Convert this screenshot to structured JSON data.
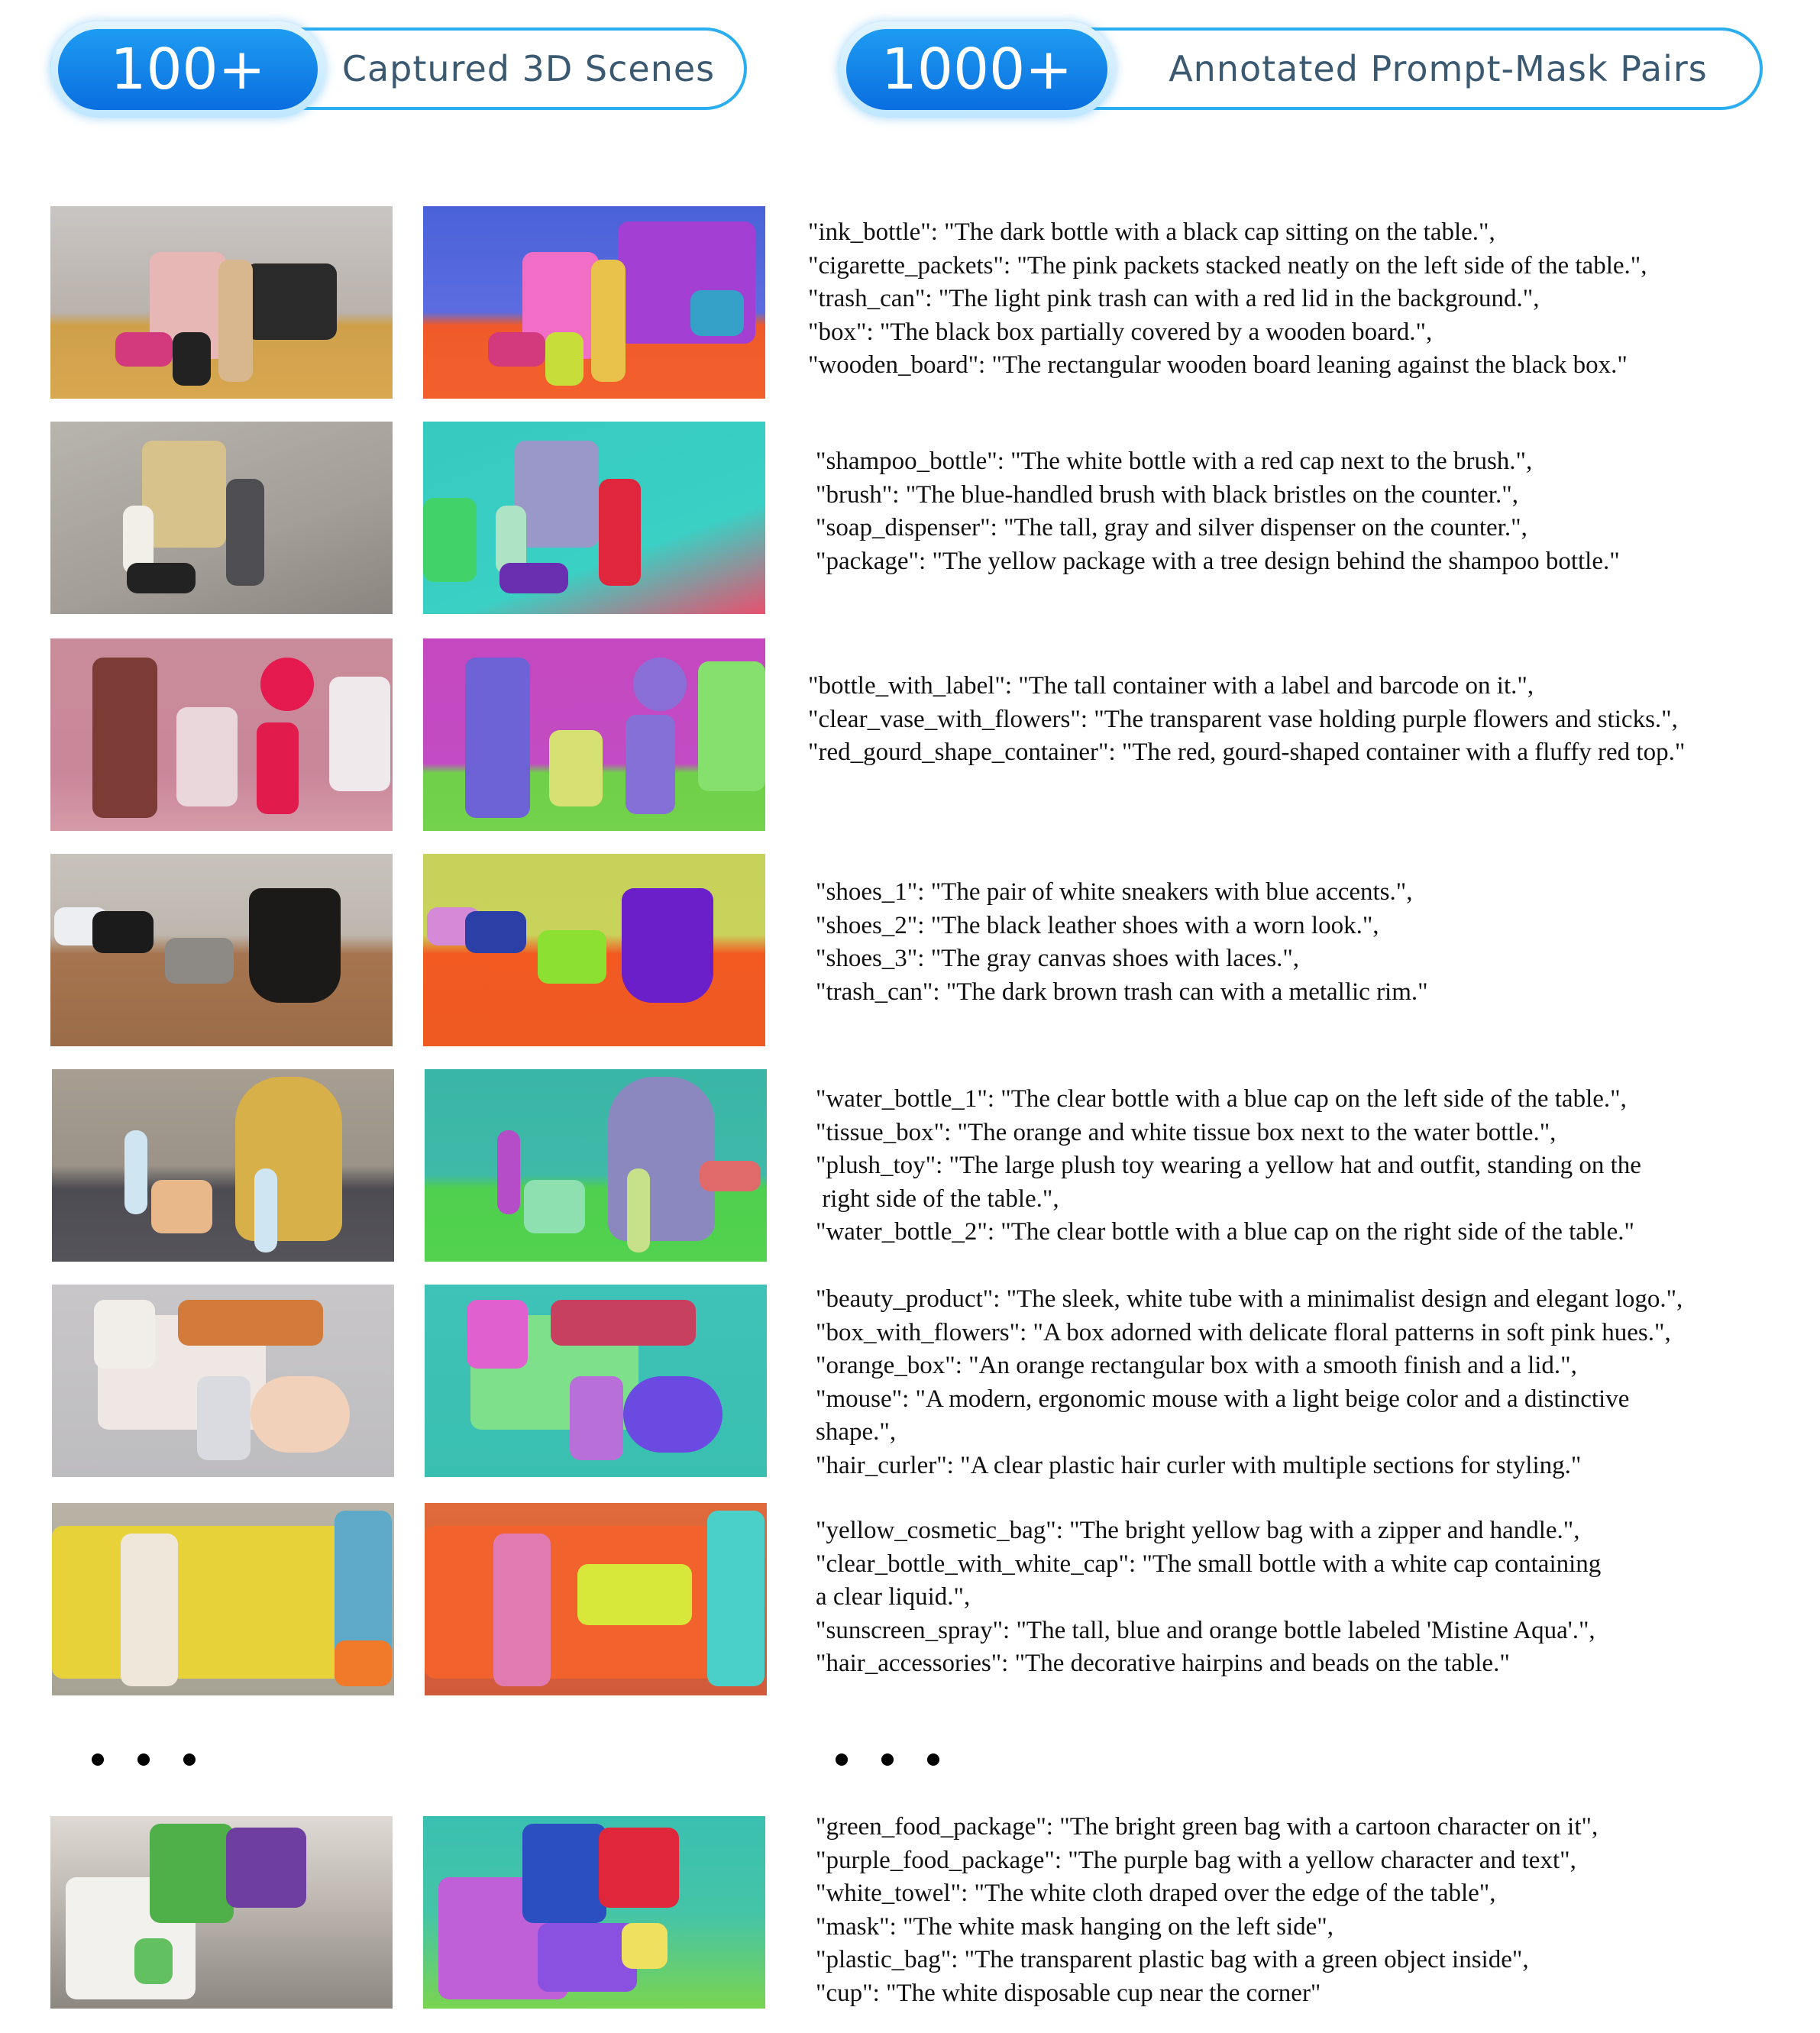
{
  "header": {
    "scenes_badge": {
      "count": "100+",
      "label": "Captured 3D Scenes"
    },
    "pairs_badge": {
      "count": "1000+",
      "label": "Annotated Prompt-Mask Pairs"
    }
  },
  "rows": [
    {
      "text": "\"ink_bottle\": \"The dark bottle with a black cap sitting on the table.\",\n\"cigarette_packets\": \"The pink packets stacked neatly on the left side of the table.\",\n\"trash_can\": \"The light pink trash can with a red lid in the background.\",\n\"box\": \"The black box partially covered by a wooden board.\",\n\"wooden_board\": \"The rectangular wooden board leaning against the black box.\""
    },
    {
      "text": "\"shampoo_bottle\": \"The white bottle with a red cap next to the brush.\",\n\"brush\": \"The blue-handled brush with black bristles on the counter.\",\n\"soap_dispenser\": \"The tall, gray and silver dispenser on the counter.\",\n\"package\": \"The yellow package with a tree design behind the shampoo bottle.\""
    },
    {
      "text": "\"bottle_with_label\": \"The tall container with a label and barcode on it.\",\n\"clear_vase_with_flowers\": \"The transparent vase holding purple flowers and sticks.\",\n\"red_gourd_shape_container\": \"The red, gourd-shaped container with a fluffy red top.\""
    },
    {
      "text": "\"shoes_1\": \"The pair of white sneakers with blue accents.\",\n\"shoes_2\": \"The black leather shoes with a worn look.\",\n\"shoes_3\": \"The gray canvas shoes with laces.\",\n\"trash_can\": \"The dark brown trash can with a metallic rim.\""
    },
    {
      "text": "\"water_bottle_1\": \"The clear bottle with a blue cap on the left side of the table.\",\n\"tissue_box\": \"The orange and white tissue box next to the water bottle.\",\n\"plush_toy\": \"The large plush toy wearing a yellow hat and outfit, standing on the\n right side of the table.\",\n\"water_bottle_2\": \"The clear bottle with a blue cap on the right side of the table.\""
    },
    {
      "text": "\"beauty_product\": \"The sleek, white tube with a minimalist design and elegant logo.\",\n\"box_with_flowers\": \"A box adorned with delicate floral patterns in soft pink hues.\",\n\"orange_box\": \"An orange rectangular box with a smooth finish and a lid.\",\n\"mouse\": \"A modern, ergonomic mouse with a light beige color and a distinctive\nshape.\",\n\"hair_curler\": \"A clear plastic hair curler with multiple sections for styling.\""
    },
    {
      "text": "\"yellow_cosmetic_bag\": \"The bright yellow bag with a zipper and handle.\",\n\"clear_bottle_with_white_cap\": \"The small bottle with a white cap containing\na clear liquid.\",\n\"sunscreen_spray\": \"The tall, blue and orange bottle labeled 'Mistine Aqua'.\",\n\"hair_accessories\": \"The decorative hairpins and beads on the table.\""
    },
    {
      "text": "\"green_food_package\": \"The bright green bag with a cartoon character on it\",\n\"purple_food_package\": \"The purple bag with a yellow character and text\",\n\"white_towel\": \"The white cloth draped over the edge of the table\",\n\"mask\": \"The white mask hanging on the left side\",\n\"plastic_bag\": \"The transparent plastic bag with a green object inside\",\n\"cup\": \"The white disposable cup near the corner\""
    }
  ],
  "colors": {
    "badge_blue": "#0a6ee0",
    "badge_border": "#2aaef0",
    "badge_text": "#3b5a72"
  }
}
